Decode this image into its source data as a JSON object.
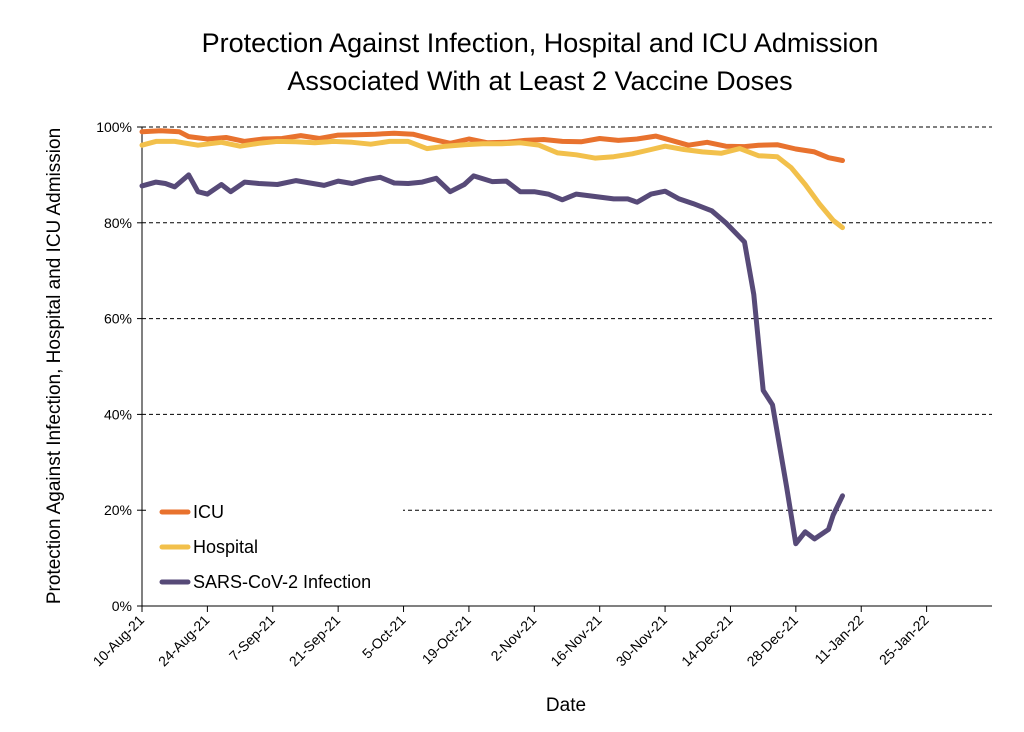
{
  "chart_data": {
    "type": "line",
    "title": [
      "Protection Against Infection, Hospital and ICU Admission",
      "Associated With at Least 2 Vaccine Doses"
    ],
    "xlabel": "Date",
    "ylabel": "Protection Against Infection, Hospital and ICU Admission",
    "x_tick_labels": [
      "10-Aug-21",
      "24-Aug-21",
      "7-Sep-21",
      "21-Sep-21",
      "5-Oct-21",
      "19-Oct-21",
      "2-Nov-21",
      "16-Nov-21",
      "30-Nov-21",
      "14-Dec-21",
      "28-Dec-21",
      "11-Jan-22",
      "25-Jan-22"
    ],
    "x_range": [
      "2021-08-10",
      "2022-02-08"
    ],
    "y_tick_labels": [
      "0%",
      "20%",
      "40%",
      "60%",
      "80%",
      "100%"
    ],
    "ylim": [
      0,
      100
    ],
    "grid": "horizontal dashed",
    "legend_position": "bottom-left",
    "series": [
      {
        "name": "ICU",
        "color": "#e8722e",
        "points": [
          [
            "2021-08-10",
            99
          ],
          [
            "2021-08-14",
            99.2
          ],
          [
            "2021-08-18",
            99
          ],
          [
            "2021-08-20",
            98
          ],
          [
            "2021-08-24",
            97.5
          ],
          [
            "2021-08-28",
            97.8
          ],
          [
            "2021-09-01",
            97
          ],
          [
            "2021-09-05",
            97.5
          ],
          [
            "2021-09-09",
            97.6
          ],
          [
            "2021-09-13",
            98.2
          ],
          [
            "2021-09-17",
            97.6
          ],
          [
            "2021-09-21",
            98.3
          ],
          [
            "2021-09-25",
            98.4
          ],
          [
            "2021-09-29",
            98.5
          ],
          [
            "2021-10-03",
            98.7
          ],
          [
            "2021-10-07",
            98.5
          ],
          [
            "2021-10-11",
            97.5
          ],
          [
            "2021-10-15",
            96.6
          ],
          [
            "2021-10-19",
            97.5
          ],
          [
            "2021-10-23",
            96.7
          ],
          [
            "2021-10-27",
            96.8
          ],
          [
            "2021-10-31",
            97.2
          ],
          [
            "2021-11-04",
            97.4
          ],
          [
            "2021-11-08",
            97
          ],
          [
            "2021-11-12",
            96.9
          ],
          [
            "2021-11-16",
            97.6
          ],
          [
            "2021-11-20",
            97.2
          ],
          [
            "2021-11-24",
            97.5
          ],
          [
            "2021-11-28",
            98.1
          ],
          [
            "2021-12-01",
            97.3
          ],
          [
            "2021-12-05",
            96.2
          ],
          [
            "2021-12-09",
            96.8
          ],
          [
            "2021-12-13",
            96
          ],
          [
            "2021-12-17",
            95.9
          ],
          [
            "2021-12-20",
            96.2
          ],
          [
            "2021-12-24",
            96.3
          ],
          [
            "2021-12-28",
            95.4
          ],
          [
            "2022-01-01",
            94.8
          ],
          [
            "2022-01-04",
            93.6
          ],
          [
            "2022-01-07",
            93
          ]
        ]
      },
      {
        "name": "Hospital",
        "color": "#f2c04b",
        "points": [
          [
            "2021-08-10",
            96.2
          ],
          [
            "2021-08-13",
            97
          ],
          [
            "2021-08-17",
            97
          ],
          [
            "2021-08-22",
            96.2
          ],
          [
            "2021-08-27",
            96.8
          ],
          [
            "2021-08-31",
            96
          ],
          [
            "2021-09-04",
            96.6
          ],
          [
            "2021-09-08",
            97
          ],
          [
            "2021-09-12",
            96.9
          ],
          [
            "2021-09-16",
            96.7
          ],
          [
            "2021-09-20",
            97
          ],
          [
            "2021-09-24",
            96.8
          ],
          [
            "2021-09-28",
            96.4
          ],
          [
            "2021-10-02",
            97
          ],
          [
            "2021-10-06",
            97
          ],
          [
            "2021-10-10",
            95.5
          ],
          [
            "2021-10-14",
            96
          ],
          [
            "2021-10-18",
            96.3
          ],
          [
            "2021-10-22",
            96.5
          ],
          [
            "2021-10-26",
            96.5
          ],
          [
            "2021-10-30",
            96.7
          ],
          [
            "2021-11-03",
            96.2
          ],
          [
            "2021-11-07",
            94.6
          ],
          [
            "2021-11-11",
            94.2
          ],
          [
            "2021-11-15",
            93.5
          ],
          [
            "2021-11-19",
            93.8
          ],
          [
            "2021-11-23",
            94.4
          ],
          [
            "2021-11-27",
            95.3
          ],
          [
            "2021-11-30",
            96
          ],
          [
            "2021-12-04",
            95.3
          ],
          [
            "2021-12-08",
            94.8
          ],
          [
            "2021-12-12",
            94.5
          ],
          [
            "2021-12-16",
            95.5
          ],
          [
            "2021-12-20",
            94
          ],
          [
            "2021-12-24",
            93.8
          ],
          [
            "2021-12-27",
            91.5
          ],
          [
            "2021-12-30",
            88
          ],
          [
            "2022-01-02",
            84
          ],
          [
            "2022-01-05",
            80.5
          ],
          [
            "2022-01-07",
            79
          ]
        ]
      },
      {
        "name": "SARS-CoV-2 Infection",
        "color": "#574a78",
        "points": [
          [
            "2021-08-10",
            87.7
          ],
          [
            "2021-08-13",
            88.5
          ],
          [
            "2021-08-15",
            88.2
          ],
          [
            "2021-08-17",
            87.5
          ],
          [
            "2021-08-20",
            90
          ],
          [
            "2021-08-22",
            86.5
          ],
          [
            "2021-08-24",
            86
          ],
          [
            "2021-08-27",
            88
          ],
          [
            "2021-08-29",
            86.5
          ],
          [
            "2021-09-01",
            88.5
          ],
          [
            "2021-09-04",
            88.2
          ],
          [
            "2021-09-08",
            88
          ],
          [
            "2021-09-12",
            88.8
          ],
          [
            "2021-09-15",
            88.3
          ],
          [
            "2021-09-18",
            87.8
          ],
          [
            "2021-09-21",
            88.7
          ],
          [
            "2021-09-24",
            88.2
          ],
          [
            "2021-09-27",
            89
          ],
          [
            "2021-09-30",
            89.5
          ],
          [
            "2021-10-03",
            88.3
          ],
          [
            "2021-10-06",
            88.2
          ],
          [
            "2021-10-09",
            88.5
          ],
          [
            "2021-10-12",
            89.3
          ],
          [
            "2021-10-15",
            86.5
          ],
          [
            "2021-10-18",
            88
          ],
          [
            "2021-10-20",
            89.8
          ],
          [
            "2021-10-24",
            88.6
          ],
          [
            "2021-10-27",
            88.7
          ],
          [
            "2021-10-30",
            86.5
          ],
          [
            "2021-11-02",
            86.5
          ],
          [
            "2021-11-05",
            86
          ],
          [
            "2021-11-08",
            84.8
          ],
          [
            "2021-11-11",
            86
          ],
          [
            "2021-11-15",
            85.5
          ],
          [
            "2021-11-19",
            85
          ],
          [
            "2021-11-22",
            85
          ],
          [
            "2021-11-24",
            84.3
          ],
          [
            "2021-11-27",
            86
          ],
          [
            "2021-11-30",
            86.6
          ],
          [
            "2021-12-03",
            85
          ],
          [
            "2021-12-06",
            84
          ],
          [
            "2021-12-10",
            82.5
          ],
          [
            "2021-12-13",
            80
          ],
          [
            "2021-12-17",
            76
          ],
          [
            "2021-12-19",
            65
          ],
          [
            "2021-12-21",
            45
          ],
          [
            "2021-12-23",
            42
          ],
          [
            "2021-12-26",
            25
          ],
          [
            "2021-12-28",
            13
          ],
          [
            "2021-12-30",
            15.5
          ],
          [
            "2022-01-01",
            14
          ],
          [
            "2022-01-04",
            16
          ],
          [
            "2022-01-05",
            19
          ],
          [
            "2022-01-07",
            23
          ]
        ]
      }
    ]
  }
}
